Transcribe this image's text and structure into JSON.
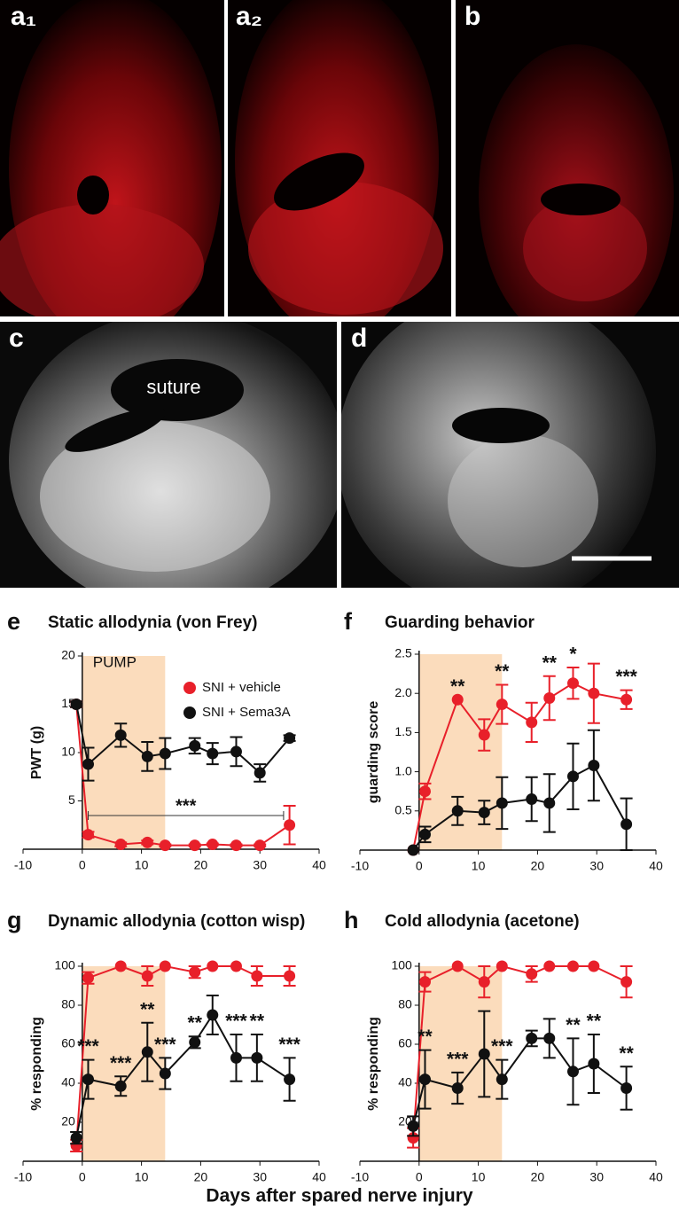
{
  "images": [
    {
      "label": "a₁"
    },
    {
      "label": "a₂"
    },
    {
      "label": "b"
    },
    {
      "label": "c",
      "annotation": "suture"
    },
    {
      "label": "d"
    }
  ],
  "x_label": "Days after spared nerve injury",
  "chart_data": [
    {
      "type": "line",
      "letter": "e",
      "title": "Static allodynia (von Frey)",
      "y_label": "PWT (g)",
      "x": [
        -1,
        1,
        6.5,
        11,
        14,
        19,
        22,
        26,
        30,
        35
      ],
      "xlim": [
        -10,
        40
      ],
      "xticks": [
        -10,
        0,
        10,
        20,
        30,
        40
      ],
      "ylim": [
        0,
        20
      ],
      "yticks": [
        5,
        10,
        15,
        20
      ],
      "shade": [
        0,
        14
      ],
      "shade_label": "PUMP",
      "shade_color": "#fbdcbc",
      "legend": "top-right",
      "bracket": {
        "from": 1,
        "to": 34,
        "label": "***"
      },
      "series": [
        {
          "name": "SNI + vehicle",
          "color": "#e8202a",
          "values": [
            15,
            1.5,
            0.5,
            0.7,
            0.4,
            0.4,
            0.5,
            0.4,
            0.4,
            2.5
          ],
          "errors": [
            0.3,
            0.3,
            0.2,
            0.2,
            0.1,
            0.1,
            0.1,
            0.1,
            0.1,
            2
          ]
        },
        {
          "name": "SNI + Sema3A",
          "color": "#111111",
          "values": [
            15,
            8.8,
            11.8,
            9.6,
            9.9,
            10.7,
            9.9,
            10.1,
            7.9,
            11.5
          ],
          "errors": [
            0.3,
            1.7,
            1.2,
            1.5,
            1.6,
            0.8,
            1.1,
            1.5,
            0.9,
            0.3
          ]
        }
      ]
    },
    {
      "type": "line",
      "letter": "f",
      "title": "Guarding behavior",
      "y_label": "guarding score",
      "x": [
        -1,
        1,
        6.5,
        11,
        14,
        19,
        22,
        26,
        29.5,
        35
      ],
      "xlim": [
        -10,
        40
      ],
      "xticks": [
        -10,
        0,
        10,
        20,
        30,
        40
      ],
      "ylim": [
        0,
        2.5
      ],
      "yticks": [
        0.5,
        {
          "value": 1,
          "label": "1.0"
        },
        1.5,
        {
          "value": 2,
          "label": "2.0"
        },
        2.5
      ],
      "shade": [
        0,
        14
      ],
      "shade_color": "#fbdcbc",
      "significance": [
        null,
        null,
        "**",
        null,
        "**",
        null,
        "**",
        "*",
        null,
        "***"
      ],
      "series": [
        {
          "color": "#e8202a",
          "values": [
            0,
            0.75,
            1.92,
            1.47,
            1.86,
            1.63,
            1.94,
            2.13,
            2.0,
            1.92
          ],
          "errors": [
            0,
            0.1,
            0,
            0.2,
            0.25,
            0.25,
            0.28,
            0.2,
            0.38,
            0.12
          ]
        },
        {
          "color": "#111111",
          "values": [
            0,
            0.2,
            0.5,
            0.48,
            0.6,
            0.65,
            0.6,
            0.94,
            1.08,
            0.33
          ],
          "errors": [
            0,
            0.1,
            0.18,
            0.15,
            0.33,
            0.28,
            0.37,
            0.42,
            0.45,
            0.33
          ]
        }
      ]
    },
    {
      "type": "line",
      "letter": "g",
      "title": "Dynamic allodynia (cotton wisp)",
      "y_label": "% responding",
      "x": [
        -1,
        1,
        6.5,
        11,
        14,
        19,
        22,
        26,
        29.5,
        35
      ],
      "xlim": [
        -10,
        40
      ],
      "xticks": [
        -10,
        0,
        10,
        20,
        30,
        40
      ],
      "ylim": [
        0,
        100
      ],
      "yticks": [
        20,
        40,
        60,
        80,
        100
      ],
      "shade": [
        0,
        14
      ],
      "shade_color": "#fbdcbc",
      "significance": [
        null,
        "***",
        "***",
        "**",
        "***",
        "**",
        null,
        "***",
        "**",
        "***"
      ],
      "series": [
        {
          "color": "#e8202a",
          "values": [
            8,
            94,
            100,
            95,
            100,
            97,
            100,
            100,
            95,
            95
          ],
          "errors": [
            3,
            3,
            0,
            5,
            0,
            3,
            0,
            0,
            5,
            5
          ]
        },
        {
          "color": "#111111",
          "values": [
            12,
            42,
            38.5,
            56,
            45,
            61,
            75,
            53,
            53,
            42
          ],
          "errors": [
            3,
            10,
            5,
            15,
            8,
            3,
            10,
            12,
            12,
            11
          ]
        }
      ]
    },
    {
      "type": "line",
      "letter": "h",
      "title": "Cold allodynia (acetone)",
      "y_label": "% responding",
      "x": [
        -1,
        1,
        6.5,
        11,
        14,
        19,
        22,
        26,
        29.5,
        35
      ],
      "xlim": [
        -10,
        40
      ],
      "xticks": [
        -10,
        0,
        10,
        20,
        30,
        40
      ],
      "ylim": [
        0,
        100
      ],
      "yticks": [
        20,
        40,
        60,
        80,
        100
      ],
      "shade": [
        0,
        14
      ],
      "shade_color": "#fbdcbc",
      "significance": [
        null,
        "**",
        "***",
        null,
        "***",
        null,
        null,
        "**",
        "**",
        "**"
      ],
      "series": [
        {
          "color": "#e8202a",
          "values": [
            12,
            92,
            100,
            92,
            100,
            96,
            100,
            100,
            100,
            92
          ],
          "errors": [
            5,
            5,
            0,
            8,
            0,
            4,
            0,
            0,
            0,
            8
          ]
        },
        {
          "color": "#111111",
          "values": [
            18,
            42,
            37.5,
            55,
            42,
            63,
            63,
            46,
            50,
            37.5
          ],
          "errors": [
            5,
            15,
            8,
            22,
            10,
            4,
            10,
            17,
            15,
            11
          ]
        }
      ]
    }
  ]
}
